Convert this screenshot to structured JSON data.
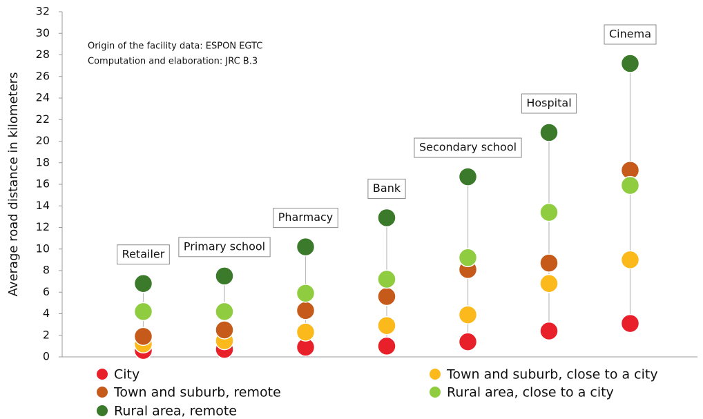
{
  "chart_data": {
    "type": "dot",
    "y_label": "Average road distance in kilometers",
    "notes": [
      "Origin of the facility data: ESPON EGTC",
      "Computation and elaboration: JRC B.3"
    ],
    "categories": [
      "Retailer",
      "Primary school",
      "Pharmacy",
      "Bank",
      "Secondary school",
      "Hospital",
      "Cinema"
    ],
    "series": [
      {
        "name": "City",
        "color": "#e8202a",
        "values": [
          0.6,
          0.7,
          0.9,
          1.0,
          1.4,
          2.4,
          3.1
        ]
      },
      {
        "name": "Town and suburb, close to a city",
        "color": "#fbb91b",
        "values": [
          1.2,
          1.5,
          2.3,
          2.9,
          3.9,
          6.8,
          9.0
        ]
      },
      {
        "name": "Town and suburb, remote",
        "color": "#c55a1a",
        "values": [
          1.9,
          2.5,
          4.3,
          5.6,
          8.1,
          8.7,
          17.3
        ]
      },
      {
        "name": "Rural area, close to a city",
        "color": "#8fcc3f",
        "values": [
          4.2,
          4.2,
          5.9,
          7.2,
          9.2,
          13.4,
          15.9
        ]
      },
      {
        "name": "Rural area, remote",
        "color": "#3b7a2b",
        "values": [
          6.8,
          7.5,
          10.2,
          12.9,
          16.7,
          20.8,
          27.2
        ]
      }
    ],
    "ylim": [
      0,
      32
    ],
    "yticks": [
      0,
      2,
      4,
      6,
      8,
      10,
      12,
      14,
      16,
      18,
      20,
      22,
      24,
      26,
      28,
      30,
      32
    ],
    "legend": "bottom"
  }
}
